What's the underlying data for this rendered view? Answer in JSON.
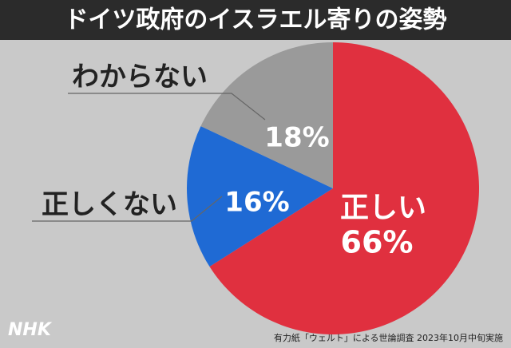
{
  "chart_data": {
    "type": "pie",
    "title": "ドイツ政府のイスラエル寄りの姿勢",
    "categories": [
      "正しい",
      "正しくない",
      "わからない"
    ],
    "values": [
      66,
      16,
      18
    ],
    "value_labels": [
      "66%",
      "16%",
      "18%"
    ],
    "colors": [
      "#e0303f",
      "#1f6ad4",
      "#9a9a9a"
    ],
    "source": "有力紙「ウェルト」による世論調査 2023年10月中旬実施",
    "logo": "NHK"
  }
}
